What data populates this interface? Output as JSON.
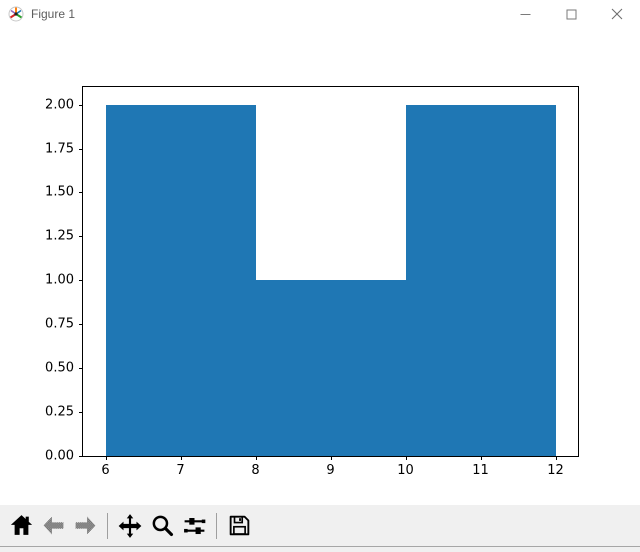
{
  "window": {
    "title": "Figure 1",
    "controls": [
      {
        "name": "minimize",
        "glyph": "minimize-icon"
      },
      {
        "name": "maximize",
        "glyph": "maximize-icon"
      },
      {
        "name": "close",
        "glyph": "close-icon"
      }
    ]
  },
  "toolbar": {
    "items": [
      {
        "name": "home",
        "icon": "home-icon",
        "disabled": false
      },
      {
        "name": "back",
        "icon": "back-arrow-icon",
        "disabled": true
      },
      {
        "name": "forward",
        "icon": "forward-arrow-icon",
        "disabled": true
      },
      {
        "name": "separator"
      },
      {
        "name": "pan",
        "icon": "pan-arrows-icon",
        "disabled": false
      },
      {
        "name": "zoom",
        "icon": "magnifier-icon",
        "disabled": false
      },
      {
        "name": "configure-subplots",
        "icon": "sliders-icon",
        "disabled": false
      },
      {
        "name": "separator"
      },
      {
        "name": "save",
        "icon": "floppy-disk-icon",
        "disabled": false
      }
    ]
  },
  "chart_data": {
    "type": "bar",
    "subtype": "histogram",
    "title": "",
    "xlabel": "",
    "ylabel": "",
    "bin_edges": [
      6,
      8,
      10,
      12
    ],
    "counts": [
      2,
      1,
      2
    ],
    "bar_color": "#1f77b4",
    "xlim": [
      5.7,
      12.3
    ],
    "ylim": [
      0,
      2.1
    ],
    "xticks": [
      6,
      7,
      8,
      9,
      10,
      11,
      12
    ],
    "xtick_labels": [
      "6",
      "7",
      "8",
      "9",
      "10",
      "11",
      "12"
    ],
    "yticks": [
      0,
      0.25,
      0.5,
      0.75,
      1.0,
      1.25,
      1.5,
      1.75,
      2.0
    ],
    "ytick_labels": [
      "0.00",
      "0.25",
      "0.50",
      "0.75",
      "1.00",
      "1.25",
      "1.50",
      "1.75",
      "2.00"
    ],
    "grid": false,
    "legend": null
  }
}
